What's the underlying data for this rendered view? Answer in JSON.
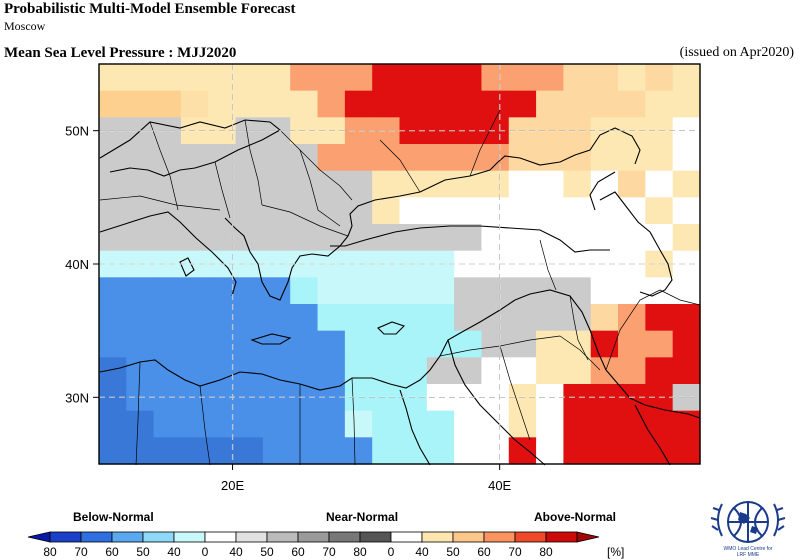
{
  "header": {
    "title": "Probabilistic Multi-Model Ensemble Forecast",
    "subtitle": "Moscow",
    "variable_line": "Mean Sea Level Pressure : MJJ2020",
    "issued": "(issued on Apr2020)"
  },
  "map": {
    "lon_range": [
      10,
      55
    ],
    "lat_range": [
      25,
      55
    ],
    "cell_deg": 2.5,
    "lat_labels": [
      "50N",
      "40N",
      "30N"
    ],
    "lat_values": [
      50,
      40,
      30
    ],
    "lon_labels": [
      "20E",
      "40E"
    ],
    "lon_values": [
      20,
      40
    ],
    "grid": true,
    "grid_rows_north_to_south": [
      "3333333555666655544343",
      "2221333356666666444433",
      "GGG33GG33556666444333W",
      "GGGGGGGG5555555444333W",
      "GGGGGGGGGG33333WW3W4W3",
      "GGGGGGGGGG3WWWWWWWWW3W",
      "GGGGGGGGGGGGGGWWWWWWW3",
      "bbbbbbbbbbbbbWWWWWWW3W",
      "BBBBBBBcbbbbbGGGGGWWWW",
      "BBBBBBBBcccccGGGGG4566",
      "BBBBBBBBBcccccGG336556",
      "DBBBBBBBBcccGGWW335566",
      "DBBBBBBBBcccWWW3W6666G",
      "DDBBBBBBBbcccWW3W66666",
      "DDDDDDBBBBcccWW6W66666"
    ]
  },
  "color_scale": {
    "B": "#4a90e8",
    "D": "#3a78d8",
    "c": "#a8f4f8",
    "b": "#c8f8fa",
    "W": "#ffffff",
    "G": "#cbcbcb",
    "1": "#fde0a8",
    "2": "#fdd090",
    "3": "#fde8b4",
    "4": "#fdd8a0",
    "5": "#fba070",
    "6": "#e01010"
  },
  "legend": {
    "categories": [
      "Below-Normal",
      "Near-Normal",
      "Above-Normal"
    ],
    "unit": "[%]",
    "labels": [
      "80",
      "70",
      "60",
      "50",
      "40",
      "0",
      "40",
      "50",
      "60",
      "70",
      "80",
      "0",
      "40",
      "50",
      "60",
      "70",
      "80"
    ],
    "colors": [
      "#1a3fc8",
      "#2f70e0",
      "#5aa8f0",
      "#8ed8f8",
      "#c8f8fa",
      "#ffffff",
      "#e2e2e2",
      "#bbbbbb",
      "#9a9a9a",
      "#787878",
      "#555555",
      "#ffffff",
      "#fde6b0",
      "#fdc68a",
      "#fb9460",
      "#ee4a2a",
      "#cc0a0a"
    ]
  },
  "logo": {
    "lines": [
      "WMO Lead Centre for",
      "LRF MME"
    ]
  }
}
